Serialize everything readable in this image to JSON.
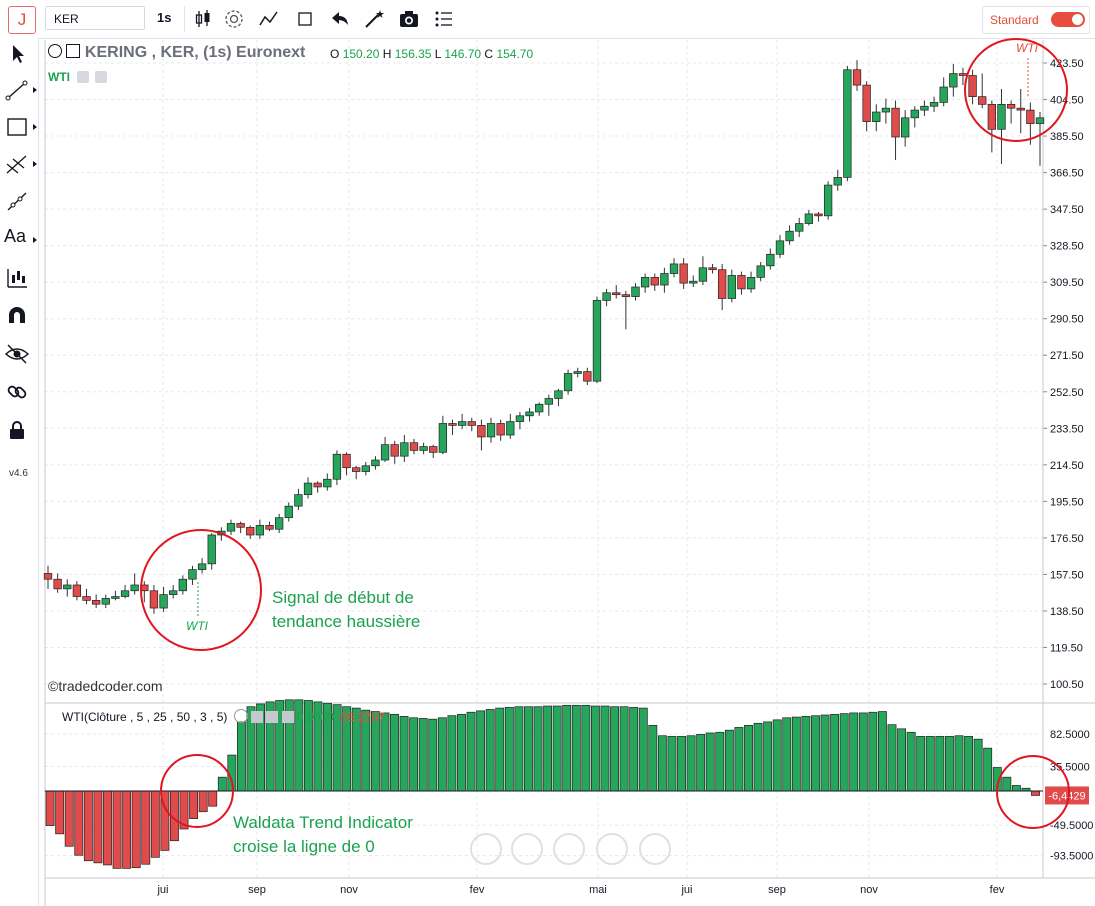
{
  "toolbar": {
    "logo": "J",
    "symbol": "KER",
    "interval": "1s",
    "layout_label": "Standard",
    "icons": [
      "candles-icon",
      "settings-icon",
      "indicators-icon",
      "fullscreen-icon",
      "undo-icon",
      "magic-wand-icon",
      "camera-icon",
      "list-icon"
    ]
  },
  "left_toolbar": {
    "tools": [
      "cursor-icon",
      "trendline-icon",
      "rectangle-icon",
      "fib-icon",
      "ray-icon",
      "text-icon",
      "pattern-icon",
      "magnet-icon",
      "eye-icon",
      "link-icon",
      "lock-icon"
    ],
    "text_tool_label": "Aa",
    "version": "v4.6"
  },
  "legend": {
    "title": "KERING , KER, (1s) Euronext",
    "o_label": "O",
    "o": "150.20",
    "h_label": "H",
    "h": "156.35",
    "l_label": "L",
    "l": "146.70",
    "c_label": "C",
    "c": "154.70",
    "overlay_label": "WTI"
  },
  "indicator": {
    "legend": "WTI(Clôture , 5 , 25 , 50 , 3 , 5)",
    "value1": "0,0000",
    "value2": "-38,2267",
    "last_value": "-6,4429"
  },
  "annotations": {
    "signal_line1": "Signal de début de",
    "signal_line2": "tendance haussière",
    "cross_line1": "Waldata Trend Indicator",
    "cross_line2": "croise la ligne de 0",
    "wti_tag": "WTI",
    "copyright": "©tradedcoder.com"
  },
  "colors": {
    "up": "#26a65b",
    "down": "#e04b4b",
    "circle": "#e0161e",
    "grid": "#e6e8ee",
    "accent": "#1aa24f"
  },
  "chart_data": [
    {
      "type": "candlestick",
      "title": "KERING , KER, (1s) Euronext",
      "y_ticks": [
        "423.50",
        "404.50",
        "385.50",
        "366.50",
        "347.50",
        "328.50",
        "309.50",
        "290.50",
        "271.50",
        "252.50",
        "233.50",
        "214.50",
        "195.50",
        "176.50",
        "157.50",
        "138.50",
        "119.50",
        "100.50"
      ],
      "x_ticks": [
        "jui",
        "sep",
        "nov",
        "fev",
        "mai",
        "jui",
        "sep",
        "nov",
        "fev"
      ],
      "ylim": [
        95,
        430
      ],
      "candles": [
        [
          158,
          155,
          162,
          150
        ],
        [
          155,
          150,
          158,
          148
        ],
        [
          150,
          152,
          155,
          146
        ],
        [
          152,
          146,
          154,
          144
        ],
        [
          146,
          144,
          150,
          142
        ],
        [
          144,
          142,
          147,
          140
        ],
        [
          142,
          145,
          147,
          140
        ],
        [
          145,
          146,
          149,
          144
        ],
        [
          146,
          149,
          152,
          145
        ],
        [
          149,
          152,
          158,
          147
        ],
        [
          152,
          149,
          154,
          143
        ],
        [
          149,
          140,
          152,
          137
        ],
        [
          140,
          147,
          151,
          138
        ],
        [
          147,
          149,
          152,
          145
        ],
        [
          149,
          155,
          157,
          147
        ],
        [
          155,
          160,
          162,
          152
        ],
        [
          160,
          163,
          166,
          158
        ],
        [
          163,
          178,
          179,
          160
        ],
        [
          178,
          180,
          182,
          175
        ],
        [
          180,
          184,
          186,
          178
        ],
        [
          184,
          182,
          185,
          179
        ],
        [
          182,
          178,
          183,
          176
        ],
        [
          178,
          183,
          186,
          176
        ],
        [
          183,
          181,
          185,
          180
        ],
        [
          181,
          187,
          189,
          179
        ],
        [
          187,
          193,
          195,
          185
        ],
        [
          193,
          199,
          202,
          191
        ],
        [
          199,
          205,
          208,
          197
        ],
        [
          205,
          203,
          206,
          200
        ],
        [
          203,
          207,
          210,
          201
        ],
        [
          207,
          220,
          222,
          204
        ],
        [
          220,
          213,
          221,
          209
        ],
        [
          213,
          211,
          214,
          207
        ],
        [
          211,
          214,
          216,
          209
        ],
        [
          214,
          217,
          219,
          212
        ],
        [
          217,
          225,
          229,
          216
        ],
        [
          225,
          219,
          227,
          215
        ],
        [
          219,
          226,
          230,
          216
        ],
        [
          226,
          222,
          228,
          220
        ],
        [
          222,
          224,
          226,
          220
        ],
        [
          224,
          221,
          225,
          218
        ],
        [
          221,
          236,
          240,
          220
        ],
        [
          236,
          235,
          238,
          230
        ],
        [
          235,
          237,
          241,
          233
        ],
        [
          237,
          235,
          239,
          232
        ],
        [
          235,
          229,
          238,
          222
        ],
        [
          229,
          236,
          239,
          226
        ],
        [
          236,
          230,
          238,
          227
        ],
        [
          230,
          237,
          241,
          228
        ],
        [
          237,
          240,
          242,
          233
        ],
        [
          240,
          242,
          244,
          237
        ],
        [
          242,
          246,
          247,
          240
        ],
        [
          246,
          249,
          251,
          240
        ],
        [
          249,
          253,
          254,
          245
        ],
        [
          253,
          262,
          264,
          251
        ],
        [
          262,
          263,
          265,
          260
        ],
        [
          263,
          258,
          265,
          256
        ],
        [
          258,
          300,
          302,
          257
        ],
        [
          300,
          304,
          306,
          297
        ],
        [
          304,
          303,
          308,
          301
        ],
        [
          303,
          302,
          305,
          285
        ],
        [
          302,
          307,
          309,
          300
        ],
        [
          307,
          312,
          314,
          304
        ],
        [
          312,
          308,
          314,
          305
        ],
        [
          308,
          314,
          317,
          304
        ],
        [
          314,
          319,
          322,
          312
        ],
        [
          319,
          309,
          322,
          306
        ],
        [
          309,
          310,
          313,
          307
        ],
        [
          310,
          317,
          323,
          308
        ],
        [
          317,
          316,
          319,
          314
        ],
        [
          316,
          301,
          319,
          295
        ],
        [
          301,
          313,
          316,
          299
        ],
        [
          313,
          306,
          315,
          303
        ],
        [
          306,
          312,
          315,
          304
        ],
        [
          312,
          318,
          320,
          310
        ],
        [
          318,
          324,
          327,
          316
        ],
        [
          324,
          331,
          334,
          322
        ],
        [
          331,
          336,
          339,
          329
        ],
        [
          336,
          340,
          343,
          333
        ],
        [
          340,
          345,
          347,
          339
        ],
        [
          345,
          344,
          346,
          341
        ],
        [
          344,
          360,
          362,
          342
        ],
        [
          360,
          364,
          368,
          357
        ],
        [
          364,
          420,
          422,
          362
        ],
        [
          420,
          412,
          425,
          409
        ],
        [
          412,
          393,
          414,
          388
        ],
        [
          393,
          398,
          402,
          388
        ],
        [
          398,
          400,
          405,
          392
        ],
        [
          400,
          385,
          404,
          373
        ],
        [
          385,
          395,
          399,
          380
        ],
        [
          395,
          399,
          401,
          390
        ],
        [
          399,
          401,
          404,
          396
        ],
        [
          401,
          403,
          406,
          398
        ],
        [
          403,
          411,
          416,
          401
        ],
        [
          411,
          418,
          423,
          406
        ],
        [
          418,
          417,
          421,
          412
        ],
        [
          417,
          406,
          420,
          402
        ],
        [
          406,
          402,
          418,
          400
        ],
        [
          402,
          389,
          404,
          377
        ],
        [
          389,
          402,
          410,
          371
        ],
        [
          402,
          400,
          404,
          392
        ],
        [
          400,
          399,
          410,
          387
        ],
        [
          399,
          392,
          403,
          381
        ],
        [
          392,
          395,
          398,
          370
        ]
      ]
    },
    {
      "type": "bar",
      "title": "WTI(Clôture , 5 , 25 , 50 , 3 , 5)",
      "y_ticks": [
        "82.5000",
        "35.5000",
        "-49.5000",
        "-93.5000"
      ],
      "ylim": [
        -118,
        122
      ],
      "values": [
        -50,
        -62,
        -80,
        -93,
        -101,
        -104,
        -107,
        -112,
        -112,
        -111,
        -106,
        -96,
        -86,
        -72,
        -55,
        -40,
        -30,
        -22,
        20,
        52,
        100,
        122,
        126,
        129,
        131,
        132,
        132,
        131,
        129,
        127,
        125,
        122,
        120,
        117,
        115,
        113,
        111,
        108,
        106,
        105,
        104,
        106,
        109,
        111,
        114,
        116,
        118,
        120,
        121,
        122,
        122,
        122,
        123,
        123,
        124,
        124,
        124,
        123,
        123,
        122,
        122,
        121,
        120,
        95,
        80,
        79,
        79,
        80,
        82,
        84,
        85,
        88,
        92,
        95,
        98,
        100,
        103,
        106,
        107,
        108,
        109,
        110,
        111,
        112,
        113,
        113,
        114,
        115,
        96,
        90,
        85,
        79,
        79,
        79,
        79,
        80,
        79,
        75,
        62,
        34,
        20,
        8,
        4,
        -6.4429
      ]
    }
  ]
}
